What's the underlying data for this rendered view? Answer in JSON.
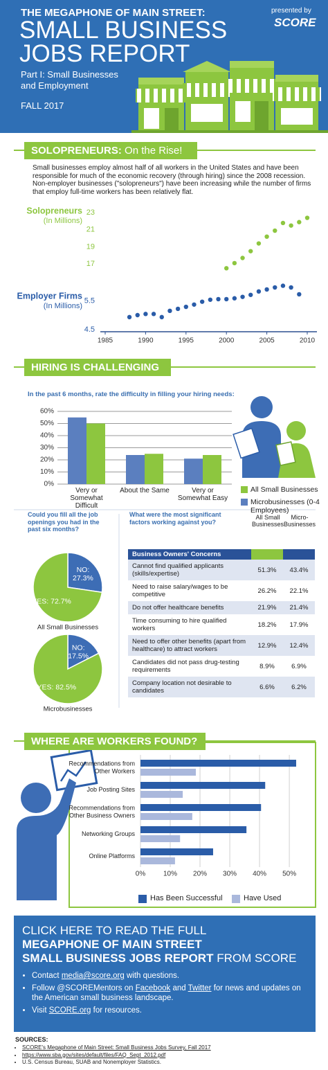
{
  "header": {
    "kicker": "THE MEGAPHONE OF MAIN STREET:",
    "title_lines": [
      "SMALL BUSINESS",
      "JOBS REPORT"
    ],
    "part_lines": [
      "Part I: Small Businesses",
      "and Employment"
    ],
    "season": "FALL 2017",
    "presented_by": "presented by",
    "brand": "SCORE"
  },
  "solopreneurs": {
    "heading_bold": "SOLOPRENEURS:",
    "heading_rest": "On the Rise!",
    "text": "Small businesses employ almost half of all workers in the United States and have been responsible for much of the economic recovery (through hiring) since the 2008 recession. Non-employer businesses (\"solopreneurs\") have been increasing while the number of firms that employ full-time workers has been relatively flat."
  },
  "hiring": {
    "heading": "HIRING IS CHALLENGING"
  },
  "fill_jobs": {
    "question": "Could you fill all the job openings you had in the past six months?"
  },
  "table": {
    "question": "What were the most significant factors working against you?",
    "columns": [
      "All Small Businesses",
      "Micro-Businesses"
    ],
    "header": "Business Owners' Concerns",
    "rows": [
      [
        "Cannot find qualified applicants (skills/expertise)",
        "51.3%",
        "43.4%"
      ],
      [
        "Need to raise salary/wages to be competitive",
        "26.2%",
        "22.1%"
      ],
      [
        "Do not offer healthcare benefits",
        "21.9%",
        "21.4%"
      ],
      [
        "Time consuming to hire qualified workers",
        "18.2%",
        "17.9%"
      ],
      [
        "Need to offer other benefits (apart from healthcare) to attract workers",
        "12.9%",
        "12.4%"
      ],
      [
        "Candidates did not pass drug-testing requirements",
        "8.9%",
        "6.9%"
      ],
      [
        "Company location not desirable to candidates",
        "6.6%",
        "6.2%"
      ]
    ]
  },
  "workers": {
    "heading": "WHERE ARE WORKERS FOUND?"
  },
  "cta": {
    "lines": [
      "CLICK HERE TO READ THE FULL",
      "MEGAPHONE OF MAIN STREET",
      "SMALL BUSINESS JOBS REPORT"
    ],
    "tail": "FROM SCORE",
    "bullets": [
      [
        "Contact",
        "media@score.org",
        "with questions."
      ],
      [
        "Follow @SCOREMentors on",
        "Facebook",
        "and",
        "Twitter",
        "for news and updates on the American small business landscape."
      ],
      [
        "Visit",
        "SCORE.org",
        "for resources."
      ]
    ]
  },
  "sources": {
    "title": "SOURCES:",
    "items": [
      "SCORE's Megaphone of Main Street: Small Business Jobs Survey, Fall 2017",
      "https://www.sba.gov/sites/default/files/FAQ_Sept_2012.pdf",
      "U.S. Census Bureau, SUAB and Nonemployer Statistics."
    ]
  },
  "chart_data": [
    {
      "type": "scatter",
      "xlim": [
        1984.4,
        2011.2
      ],
      "xticks": [
        1985,
        1990,
        1995,
        2000,
        2005,
        2010
      ],
      "ylim": [
        16.2,
        23.5
      ],
      "yticks": [
        17,
        19,
        21,
        23
      ],
      "y2lim": [
        4.5,
        6.2
      ],
      "y2ticks": [
        4.5,
        5.5
      ],
      "grid": false,
      "series": [
        {
          "name": "Solopreneurs",
          "unit": "(In Millions)",
          "color": "#8dc63f",
          "axis": "y",
          "x": [
            2000,
            2001,
            2002,
            2003,
            2004,
            2005,
            2006,
            2007,
            2008,
            2009,
            2010
          ],
          "values": [
            16.5,
            17.1,
            17.7,
            18.5,
            19.4,
            20.2,
            20.9,
            21.8,
            21.5,
            21.9,
            22.4
          ]
        },
        {
          "name": "Employer Firms",
          "unit": "(In Millions)",
          "color": "#2a5ca8",
          "axis": "y2",
          "x": [
            1988,
            1989,
            1990,
            1991,
            1992,
            1993,
            1994,
            1995,
            1996,
            1997,
            1998,
            1999,
            2000,
            2001,
            2002,
            2003,
            2004,
            2005,
            2006,
            2007,
            2008,
            2009
          ],
          "values": [
            4.94,
            5.01,
            5.05,
            5.05,
            4.94,
            5.16,
            5.23,
            5.3,
            5.38,
            5.48,
            5.55,
            5.57,
            5.57,
            5.6,
            5.65,
            5.72,
            5.84,
            5.91,
            5.98,
            6.04,
            5.98,
            5.74
          ]
        }
      ]
    },
    {
      "type": "bar",
      "title": "In the past 6 months, rate the difficulty in filling your hiring needs:",
      "categories": [
        "Very or Somewhat Difficult",
        "About the Same",
        "Very or Somewhat Easy"
      ],
      "series": [
        {
          "name": "All Small Businesses",
          "color": "#8dc63f",
          "values": [
            50,
            25,
            24
          ]
        },
        {
          "name": "Microbusinesses (0-4 Employees)",
          "color": "#5b7fbf",
          "values": [
            55,
            24,
            21
          ]
        }
      ],
      "ylim": [
        0,
        60
      ],
      "yticks": [
        {
          "value": 0,
          "label": "0%"
        },
        {
          "value": 10,
          "label": "10%"
        },
        {
          "value": 20,
          "label": "20%"
        },
        {
          "value": 30,
          "label": "30%"
        },
        {
          "value": 40,
          "label": "40%"
        },
        {
          "value": 50,
          "label": "50%"
        },
        {
          "value": 60,
          "label": "60%"
        }
      ],
      "grid": true
    },
    {
      "type": "pie",
      "title": "All Small Businesses",
      "categories": [
        "NO:",
        "YES:"
      ],
      "values": [
        27.3,
        72.7
      ],
      "value_labels": [
        "27.3%",
        "72.7%"
      ],
      "colors": [
        "#3d6db5",
        "#8dc63f"
      ]
    },
    {
      "type": "pie",
      "title": "Microbusinesses",
      "categories": [
        "NO:",
        "YES:"
      ],
      "values": [
        17.5,
        82.5
      ],
      "value_labels": [
        "17.5%",
        "82.5%"
      ],
      "colors": [
        "#3d6db5",
        "#8dc63f"
      ]
    },
    {
      "type": "hbar",
      "categories": [
        "Recommendations from Other Workers",
        "Job Posting Sites",
        "Recommendations from Other Business Owners",
        "Networking Groups",
        "Online Platforms"
      ],
      "series": [
        {
          "name": "Has Been Successful",
          "color": "#2a5ca8",
          "values": [
            52.3,
            41.9,
            40.5,
            35.6,
            24.4
          ]
        },
        {
          "name": "Have Used",
          "color": "#aab8dc",
          "values": [
            18.6,
            14.2,
            17.4,
            13.3,
            11.6
          ]
        }
      ],
      "xlim": [
        0,
        53
      ],
      "xticks": [
        {
          "value": 0,
          "label": "0%"
        },
        {
          "value": 10,
          "label": "10%"
        },
        {
          "value": 20,
          "label": "20%"
        },
        {
          "value": 30,
          "label": "30%"
        },
        {
          "value": 40,
          "label": "40%"
        },
        {
          "value": 50,
          "label": "50%"
        }
      ],
      "grid": true
    }
  ]
}
